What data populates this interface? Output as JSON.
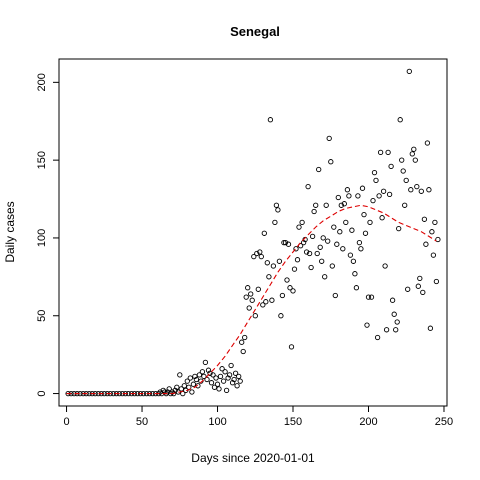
{
  "chart_data": {
    "type": "scatter",
    "title": "Senegal",
    "xlabel": "Days since 2020-01-01",
    "ylabel": "Daily cases",
    "xlim": [
      -5,
      252
    ],
    "ylim": [
      -8,
      215
    ],
    "x_ticks": [
      0,
      50,
      100,
      150,
      200,
      250
    ],
    "y_ticks": [
      0,
      50,
      100,
      150,
      200
    ],
    "grid": false,
    "legend": "none",
    "point_color": "#000000",
    "trend_color": "#dd0000",
    "points": [
      [
        1,
        0
      ],
      [
        3,
        0
      ],
      [
        5,
        0
      ],
      [
        7,
        0
      ],
      [
        9,
        0
      ],
      [
        11,
        0
      ],
      [
        13,
        0
      ],
      [
        15,
        0
      ],
      [
        17,
        0
      ],
      [
        19,
        0
      ],
      [
        21,
        0
      ],
      [
        23,
        0
      ],
      [
        25,
        0
      ],
      [
        27,
        0
      ],
      [
        29,
        0
      ],
      [
        31,
        0
      ],
      [
        33,
        0
      ],
      [
        35,
        0
      ],
      [
        37,
        0
      ],
      [
        39,
        0
      ],
      [
        41,
        0
      ],
      [
        43,
        0
      ],
      [
        45,
        0
      ],
      [
        47,
        0
      ],
      [
        49,
        0
      ],
      [
        51,
        0
      ],
      [
        53,
        0
      ],
      [
        55,
        0
      ],
      [
        57,
        0
      ],
      [
        59,
        0
      ],
      [
        61,
        0
      ],
      [
        62,
        1
      ],
      [
        63,
        0
      ],
      [
        64,
        2
      ],
      [
        65,
        1
      ],
      [
        66,
        0
      ],
      [
        67,
        1
      ],
      [
        68,
        3
      ],
      [
        69,
        0
      ],
      [
        70,
        1
      ],
      [
        71,
        0
      ],
      [
        72,
        2
      ],
      [
        73,
        4
      ],
      [
        74,
        1
      ],
      [
        75,
        12
      ],
      [
        76,
        3
      ],
      [
        77,
        0
      ],
      [
        78,
        5
      ],
      [
        79,
        2
      ],
      [
        80,
        8
      ],
      [
        81,
        4
      ],
      [
        82,
        10
      ],
      [
        83,
        1
      ],
      [
        84,
        6
      ],
      [
        85,
        11
      ],
      [
        86,
        9
      ],
      [
        87,
        5
      ],
      [
        88,
        12
      ],
      [
        89,
        8
      ],
      [
        90,
        14
      ],
      [
        91,
        11
      ],
      [
        92,
        20
      ],
      [
        93,
        9
      ],
      [
        94,
        15
      ],
      [
        95,
        13
      ],
      [
        96,
        7
      ],
      [
        97,
        12
      ],
      [
        98,
        4
      ],
      [
        99,
        10
      ],
      [
        100,
        6
      ],
      [
        101,
        3
      ],
      [
        102,
        11
      ],
      [
        103,
        16
      ],
      [
        104,
        8
      ],
      [
        105,
        14
      ],
      [
        106,
        2
      ],
      [
        107,
        10
      ],
      [
        108,
        12
      ],
      [
        109,
        18
      ],
      [
        110,
        7
      ],
      [
        111,
        9
      ],
      [
        112,
        13
      ],
      [
        113,
        5
      ],
      [
        114,
        11
      ],
      [
        115,
        8
      ],
      [
        116,
        33
      ],
      [
        117,
        27
      ],
      [
        118,
        36
      ],
      [
        119,
        62
      ],
      [
        120,
        68
      ],
      [
        121,
        55
      ],
      [
        122,
        64
      ],
      [
        123,
        60
      ],
      [
        124,
        88
      ],
      [
        125,
        50
      ],
      [
        126,
        90
      ],
      [
        127,
        67
      ],
      [
        128,
        91
      ],
      [
        129,
        88
      ],
      [
        130,
        57
      ],
      [
        131,
        103
      ],
      [
        132,
        59
      ],
      [
        133,
        84
      ],
      [
        134,
        75
      ],
      [
        135,
        176
      ],
      [
        136,
        60
      ],
      [
        137,
        82
      ],
      [
        138,
        110
      ],
      [
        139,
        121
      ],
      [
        140,
        118
      ],
      [
        141,
        85
      ],
      [
        142,
        50
      ],
      [
        143,
        63
      ],
      [
        144,
        97
      ],
      [
        145,
        97
      ],
      [
        146,
        73
      ],
      [
        147,
        96
      ],
      [
        148,
        68
      ],
      [
        149,
        30
      ],
      [
        150,
        66
      ],
      [
        151,
        80
      ],
      [
        152,
        93
      ],
      [
        153,
        86
      ],
      [
        154,
        107
      ],
      [
        155,
        95
      ],
      [
        156,
        110
      ],
      [
        157,
        97
      ],
      [
        158,
        99
      ],
      [
        159,
        91
      ],
      [
        160,
        133
      ],
      [
        161,
        90
      ],
      [
        162,
        81
      ],
      [
        163,
        101
      ],
      [
        164,
        117
      ],
      [
        165,
        121
      ],
      [
        166,
        90
      ],
      [
        167,
        144
      ],
      [
        168,
        94
      ],
      [
        169,
        85
      ],
      [
        170,
        100
      ],
      [
        171,
        75
      ],
      [
        172,
        121
      ],
      [
        173,
        98
      ],
      [
        174,
        164
      ],
      [
        175,
        149
      ],
      [
        176,
        82
      ],
      [
        177,
        107
      ],
      [
        178,
        63
      ],
      [
        179,
        96
      ],
      [
        180,
        126
      ],
      [
        181,
        104
      ],
      [
        182,
        121
      ],
      [
        183,
        93
      ],
      [
        184,
        122
      ],
      [
        185,
        110
      ],
      [
        186,
        131
      ],
      [
        187,
        127
      ],
      [
        188,
        89
      ],
      [
        189,
        105
      ],
      [
        190,
        85
      ],
      [
        191,
        77
      ],
      [
        192,
        68
      ],
      [
        193,
        127
      ],
      [
        194,
        97
      ],
      [
        195,
        93
      ],
      [
        196,
        132
      ],
      [
        197,
        115
      ],
      [
        198,
        103
      ],
      [
        199,
        44
      ],
      [
        200,
        62
      ],
      [
        201,
        110
      ],
      [
        202,
        62
      ],
      [
        203,
        124
      ],
      [
        204,
        142
      ],
      [
        205,
        137
      ],
      [
        206,
        36
      ],
      [
        207,
        127
      ],
      [
        208,
        155
      ],
      [
        209,
        113
      ],
      [
        210,
        130
      ],
      [
        211,
        82
      ],
      [
        212,
        41
      ],
      [
        213,
        155
      ],
      [
        214,
        128
      ],
      [
        215,
        146
      ],
      [
        216,
        60
      ],
      [
        217,
        51
      ],
      [
        218,
        41
      ],
      [
        219,
        46
      ],
      [
        220,
        106
      ],
      [
        221,
        176
      ],
      [
        222,
        150
      ],
      [
        223,
        143
      ],
      [
        224,
        121
      ],
      [
        225,
        137
      ],
      [
        226,
        67
      ],
      [
        227,
        207
      ],
      [
        228,
        131
      ],
      [
        229,
        154
      ],
      [
        230,
        157
      ],
      [
        231,
        150
      ],
      [
        232,
        133
      ],
      [
        233,
        69
      ],
      [
        234,
        74
      ],
      [
        235,
        130
      ],
      [
        236,
        65
      ],
      [
        237,
        112
      ],
      [
        238,
        96
      ],
      [
        239,
        161
      ],
      [
        240,
        131
      ],
      [
        241,
        42
      ],
      [
        242,
        104
      ],
      [
        243,
        89
      ],
      [
        244,
        110
      ],
      [
        245,
        72
      ],
      [
        246,
        99
      ]
    ],
    "trend": [
      [
        0,
        0
      ],
      [
        20,
        0
      ],
      [
        40,
        0
      ],
      [
        60,
        0
      ],
      [
        70,
        0
      ],
      [
        80,
        2
      ],
      [
        85,
        4
      ],
      [
        90,
        8
      ],
      [
        95,
        13
      ],
      [
        100,
        18
      ],
      [
        105,
        24
      ],
      [
        110,
        31
      ],
      [
        115,
        38
      ],
      [
        120,
        46
      ],
      [
        125,
        54
      ],
      [
        130,
        62
      ],
      [
        135,
        70
      ],
      [
        140,
        78
      ],
      [
        145,
        85
      ],
      [
        150,
        91
      ],
      [
        155,
        97
      ],
      [
        160,
        102
      ],
      [
        165,
        107
      ],
      [
        170,
        111
      ],
      [
        175,
        114
      ],
      [
        180,
        117
      ],
      [
        185,
        119
      ],
      [
        190,
        120
      ],
      [
        195,
        121
      ],
      [
        200,
        120
      ],
      [
        205,
        118
      ],
      [
        210,
        116
      ],
      [
        215,
        113
      ],
      [
        220,
        110
      ],
      [
        225,
        108
      ],
      [
        230,
        106
      ],
      [
        235,
        104
      ],
      [
        240,
        101
      ],
      [
        245,
        98
      ]
    ]
  }
}
